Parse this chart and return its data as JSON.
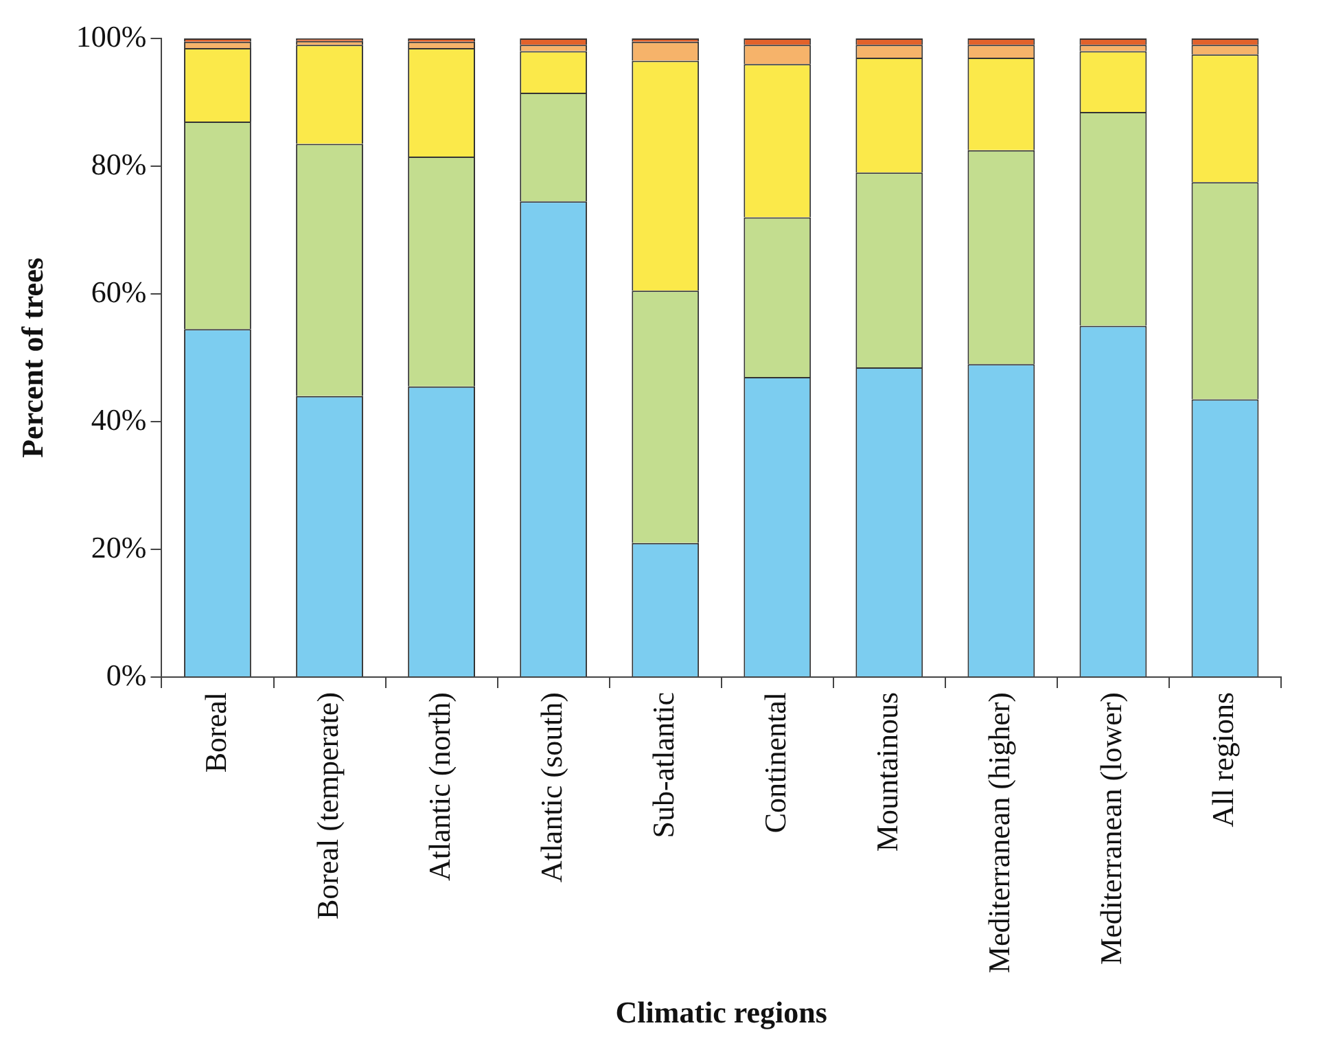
{
  "chart_data": {
    "type": "bar",
    "stacked": true,
    "xlabel": "Climatic regions",
    "ylabel": "Percent of trees",
    "categories": [
      "Boreal",
      "Boreal (temperate)",
      "Atlantic (north)",
      "Atlantic (south)",
      "Sub-atlantic",
      "Continental",
      "Mountainous",
      "Mediterranean (higher)",
      "Mediterranean (lower)",
      "All regions"
    ],
    "series": [
      {
        "color": "#7ccdf0",
        "values": [
          54.5,
          44,
          45.5,
          74.5,
          21,
          47,
          48.5,
          49,
          55,
          43.5
        ]
      },
      {
        "color": "#c3dd8f",
        "values": [
          32.5,
          39.5,
          36,
          17,
          39.5,
          25,
          30.5,
          33.5,
          33.5,
          34
        ]
      },
      {
        "color": "#fbe94a",
        "values": [
          11.5,
          15.5,
          17,
          6.5,
          36,
          24,
          18,
          14.5,
          9.5,
          20
        ]
      },
      {
        "color": "#f6b36a",
        "values": [
          1,
          0.6,
          1,
          1,
          3,
          3,
          2,
          2,
          1,
          1.5
        ]
      },
      {
        "color": "#e2622b",
        "values": [
          0.5,
          0.4,
          0.5,
          1,
          0.5,
          1,
          1,
          1,
          1,
          1
        ]
      }
    ],
    "ylim": [
      0,
      100
    ],
    "yticks": [
      {
        "value": 0,
        "label": "0%"
      },
      {
        "value": 20,
        "label": "20%"
      },
      {
        "value": 40,
        "label": "40%"
      },
      {
        "value": 60,
        "label": "60%"
      },
      {
        "value": 80,
        "label": "80%"
      },
      {
        "value": 100,
        "label": "100%"
      }
    ]
  }
}
